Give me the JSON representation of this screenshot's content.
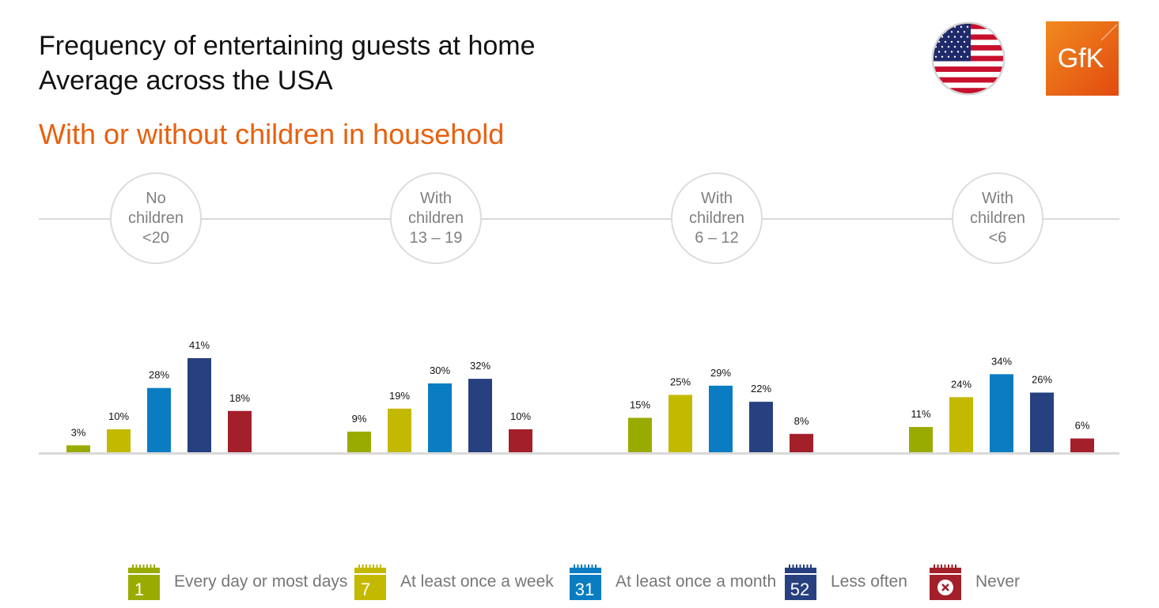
{
  "header": {
    "title_line1": "Frequency of entertaining guests at home",
    "title_line2": "Average across the USA",
    "subtitle": "With or without children in household",
    "flag_icon": "usa-flag-icon",
    "logo_text": "GfK",
    "logo_color": "#e8600f"
  },
  "chart_data": {
    "type": "bar",
    "categories": [
      "No children <20",
      "With children 13 – 19",
      "With children 6 – 12",
      "With children <6"
    ],
    "category_labels": [
      [
        "No",
        "children",
        "<20"
      ],
      [
        "With",
        "children",
        "13 – 19"
      ],
      [
        "With",
        "children",
        "6 – 12"
      ],
      [
        "With",
        "children",
        "<6"
      ]
    ],
    "series": [
      {
        "name": "Every day or most days",
        "color": "#9aab00",
        "icon_text": "1",
        "values": [
          3,
          9,
          15,
          11
        ]
      },
      {
        "name": "At least once a week",
        "color": "#c3b900",
        "icon_text": "7",
        "values": [
          10,
          19,
          25,
          24
        ]
      },
      {
        "name": "At least once a month",
        "color": "#0a7dc2",
        "icon_text": "31",
        "values": [
          28,
          30,
          29,
          34
        ]
      },
      {
        "name": "Less often",
        "color": "#27407f",
        "icon_text": "52",
        "values": [
          41,
          32,
          22,
          26
        ]
      },
      {
        "name": "Never",
        "color": "#a31f2a",
        "icon_text": "",
        "values": [
          18,
          10,
          8,
          6
        ]
      }
    ],
    "value_suffix": "%",
    "ylim": [
      0,
      41
    ],
    "grid": false,
    "legend_position": "bottom"
  },
  "legend": {
    "items": [
      {
        "label": "Every day or most days",
        "icon": "calendar-1-icon"
      },
      {
        "label": "At least once a week",
        "icon": "calendar-7-icon"
      },
      {
        "label": "At least once a month",
        "icon": "calendar-31-icon"
      },
      {
        "label": "Less often",
        "icon": "calendar-52-icon"
      },
      {
        "label": "Never",
        "icon": "calendar-never-icon"
      }
    ]
  }
}
